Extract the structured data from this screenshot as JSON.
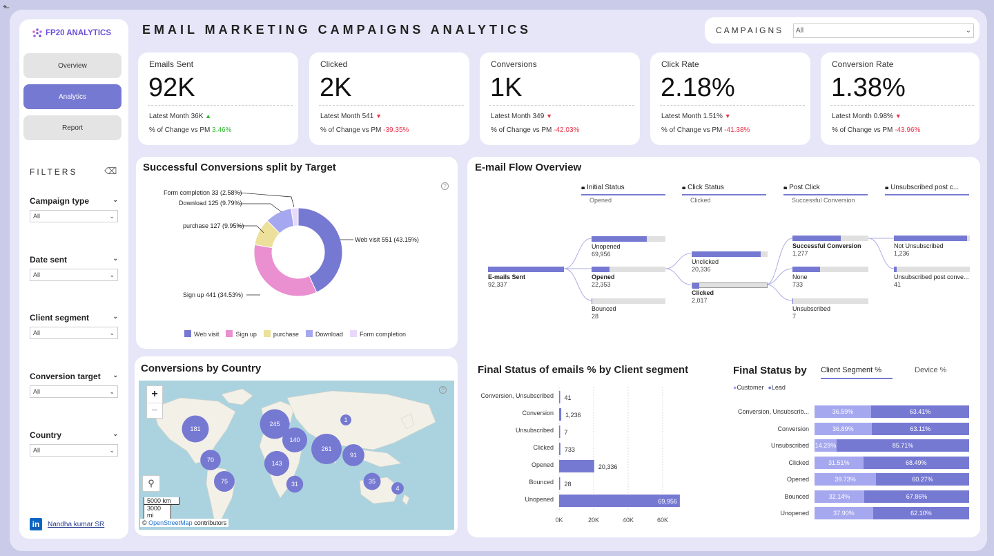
{
  "app": {
    "back_icon": "back-arrow-icon",
    "title": "EMAIL MARKETING CAMPAIGNS ANALYTICS",
    "logo": "FP20 ANALYTICS"
  },
  "nav": [
    {
      "label": "Overview",
      "active": false
    },
    {
      "label": "Analytics",
      "active": true
    },
    {
      "label": "Report",
      "active": false
    }
  ],
  "filters": {
    "title": "FILTERS",
    "items": [
      {
        "label": "Campaign type",
        "value": "All"
      },
      {
        "label": "Date sent",
        "value": "All"
      },
      {
        "label": "Client segment",
        "value": "All"
      },
      {
        "label": "Conversion target",
        "value": "All"
      },
      {
        "label": "Country",
        "value": "All"
      }
    ]
  },
  "author": {
    "name": "Nandha kumar SR",
    "badge": "in"
  },
  "campaigns": {
    "label": "CAMPAIGNS",
    "value": "All"
  },
  "kpis": [
    {
      "title": "Emails Sent",
      "value": "92K",
      "latest": "Latest Month 36K",
      "trend": "up",
      "change_label": "% of Change vs PM",
      "change": "3.46%"
    },
    {
      "title": "Clicked",
      "value": "2K",
      "latest": "Latest Month 541",
      "trend": "down",
      "change_label": "% of Change vs PM",
      "change": "-39.35%"
    },
    {
      "title": "Conversions",
      "value": "1K",
      "latest": "Latest Month 349",
      "trend": "down",
      "change_label": "% of Change vs PM",
      "change": "-42.03%"
    },
    {
      "title": "Click Rate",
      "value": "2.18%",
      "latest": "Latest Month 1.51%",
      "trend": "down",
      "change_label": "% of Change vs PM",
      "change": "-41.38%"
    },
    {
      "title": "Conversion Rate",
      "value": "1.38%",
      "latest": "Latest Month 0.98%",
      "trend": "down",
      "change_label": "% of Change vs PM",
      "change": "-43.96%"
    }
  ],
  "donut": {
    "title": "Successful Conversions split by Target",
    "labels": [
      "Web visit 551 (43.15%)",
      "Sign up 441 (34.53%)",
      "purchase 127 (9.95%)",
      "Download 125 (9.79%)",
      "Form completion 33 (2.58%)"
    ],
    "legend": [
      "Web visit",
      "Sign up",
      "purchase",
      "Download",
      "Form completion"
    ],
    "colors": [
      "#7679d2",
      "#ea8fcf",
      "#ece09a",
      "#a6a8ef",
      "#e8d8fb"
    ]
  },
  "map": {
    "title": "Conversions by Country",
    "zoom_in": "+",
    "zoom_out": "−",
    "scale_km": "5000 km",
    "scale_mi": "3000 mi",
    "attribution_prefix": "©",
    "attribution_link": "OpenStreetMap",
    "attribution_suffix": "contributors"
  },
  "flow": {
    "title": "E-mail Flow Overview",
    "headers": [
      {
        "label": "Initial Status",
        "sub": "Opened"
      },
      {
        "label": "Click Status",
        "sub": "Clicked"
      },
      {
        "label": "Post Click",
        "sub": "Successful Conversion"
      },
      {
        "label": "Unsubscribed post c...",
        "sub": ""
      }
    ],
    "nodes": {
      "sent": {
        "label": "E-mails Sent",
        "value": "92,337"
      },
      "unopened": {
        "label": "Unopened",
        "value": "69,956"
      },
      "opened": {
        "label": "Opened",
        "value": "22,353"
      },
      "bounced": {
        "label": "Bounced",
        "value": "28"
      },
      "unclicked": {
        "label": "Unclicked",
        "value": "20,336"
      },
      "clicked": {
        "label": "Clicked",
        "value": "2,017"
      },
      "success": {
        "label": "Successful Conversion",
        "value": "1,277"
      },
      "none": {
        "label": "None",
        "value": "733"
      },
      "unsub": {
        "label": "Unsubscribed",
        "value": "7"
      },
      "notunsub": {
        "label": "Not Unsubscribed",
        "value": "1,236"
      },
      "unsubpost": {
        "label": "Unsubscribed post conve...",
        "value": "41"
      }
    }
  },
  "chart_data": [
    {
      "type": "pie",
      "title": "Successful Conversions split by Target",
      "categories": [
        "Web visit",
        "Sign up",
        "purchase",
        "Download",
        "Form completion"
      ],
      "values": [
        551,
        441,
        127,
        125,
        33
      ],
      "percent": [
        43.15,
        34.53,
        9.95,
        9.79,
        2.58
      ]
    },
    {
      "type": "bar",
      "title": "Final Status of emails % by Client segment",
      "categories": [
        "Conversion, Unsubscribed",
        "Conversion",
        "Unsubscribed",
        "Clicked",
        "Opened",
        "Bounced",
        "Unopened"
      ],
      "values": [
        41,
        1236,
        7,
        733,
        20336,
        28,
        69956
      ],
      "labels": [
        "41",
        "1,236",
        "7",
        "733",
        "20,336",
        "28",
        "69,956"
      ],
      "xticks": [
        "0K",
        "20K",
        "40K",
        "60K"
      ],
      "xlim": [
        0,
        70000
      ]
    },
    {
      "type": "bar",
      "title": "Final Status by",
      "tabs": [
        "Client Segment %",
        "Device %"
      ],
      "legend": [
        "Customer",
        "Lead"
      ],
      "categories": [
        "Conversion, Unsubscrib...",
        "Conversion",
        "Unsubscribed",
        "Clicked",
        "Opened",
        "Bounced",
        "Unopened"
      ],
      "series": [
        {
          "name": "Customer",
          "values": [
            36.59,
            36.89,
            14.29,
            31.51,
            39.73,
            32.14,
            37.9
          ],
          "labels": [
            "36.59%",
            "36.89%",
            "14.29%",
            "31.51%",
            "39.73%",
            "32.14%",
            "37.90%"
          ]
        },
        {
          "name": "Lead",
          "values": [
            63.41,
            63.11,
            85.71,
            68.49,
            60.27,
            67.86,
            62.1
          ],
          "labels": [
            "63.41%",
            "63.11%",
            "85.71%",
            "68.49%",
            "60.27%",
            "67.86%",
            "62.10%"
          ]
        }
      ]
    },
    {
      "type": "scatter",
      "title": "Conversions by Country",
      "points": [
        {
          "label": "181",
          "value": 181
        },
        {
          "label": "245",
          "value": 245
        },
        {
          "label": "140",
          "value": 140
        },
        {
          "label": "1",
          "value": 1
        },
        {
          "label": "261",
          "value": 261
        },
        {
          "label": "70",
          "value": 70
        },
        {
          "label": "143",
          "value": 143
        },
        {
          "label": "91",
          "value": 91
        },
        {
          "label": "75",
          "value": 75
        },
        {
          "label": "31",
          "value": 31
        },
        {
          "label": "35",
          "value": 35
        },
        {
          "label": "4",
          "value": 4
        }
      ]
    }
  ]
}
